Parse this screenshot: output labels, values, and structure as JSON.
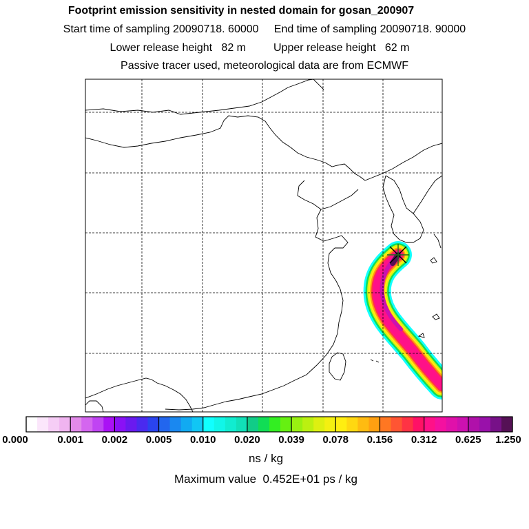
{
  "header": {
    "title": "Footprint emission sensitivity in nested domain for gosan_200907",
    "sampling_times": "Start time of sampling 20090718. 60000     End time of sampling 20090718. 90000",
    "release_heights": "Lower release height   82 m         Upper release height   62 m",
    "model_info": "Passive tracer used, meteorological data are from ECMWF"
  },
  "colorbar": {
    "tick_labels": [
      "0.000",
      "0.001",
      "0.002",
      "0.005",
      "0.010",
      "0.020",
      "0.039",
      "0.078",
      "0.156",
      "0.312",
      "0.625",
      "1.250"
    ],
    "colors": [
      "#ffffff",
      "#fbe6fb",
      "#f6cdf6",
      "#f0b4f0",
      "#e28be9",
      "#d466ef",
      "#c044f3",
      "#aa11f5",
      "#8a11f5",
      "#6a1aef",
      "#4a2aef",
      "#2a44ef",
      "#2266ee",
      "#1a88f0",
      "#11aaf2",
      "#11c6f4",
      "#11ffff",
      "#11f6e8",
      "#11ecd0",
      "#11e0b8",
      "#11cc88",
      "#11dd55",
      "#33ee22",
      "#66f011",
      "#99f011",
      "#bbf011",
      "#ddf011",
      "#f4f011",
      "#ffee11",
      "#ffd811",
      "#ffbb11",
      "#ffa011",
      "#ff7722",
      "#ff5533",
      "#ff3344",
      "#ff1166",
      "#ff1188",
      "#f411a0",
      "#e011aa",
      "#cc11b0",
      "#b011aa",
      "#9911aa",
      "#771188",
      "#551155"
    ],
    "unit": "ns / kg",
    "max_value_text": "Maximum value  0.452E+01 ps / kg"
  },
  "map": {
    "receptor_marker": "receptor-star",
    "plume_colors": [
      "#11ffff",
      "#11dd55",
      "#ddf011",
      "#ffee11",
      "#ffa011",
      "#ff3344",
      "#ff1188",
      "#cc11b0",
      "#551155"
    ]
  }
}
